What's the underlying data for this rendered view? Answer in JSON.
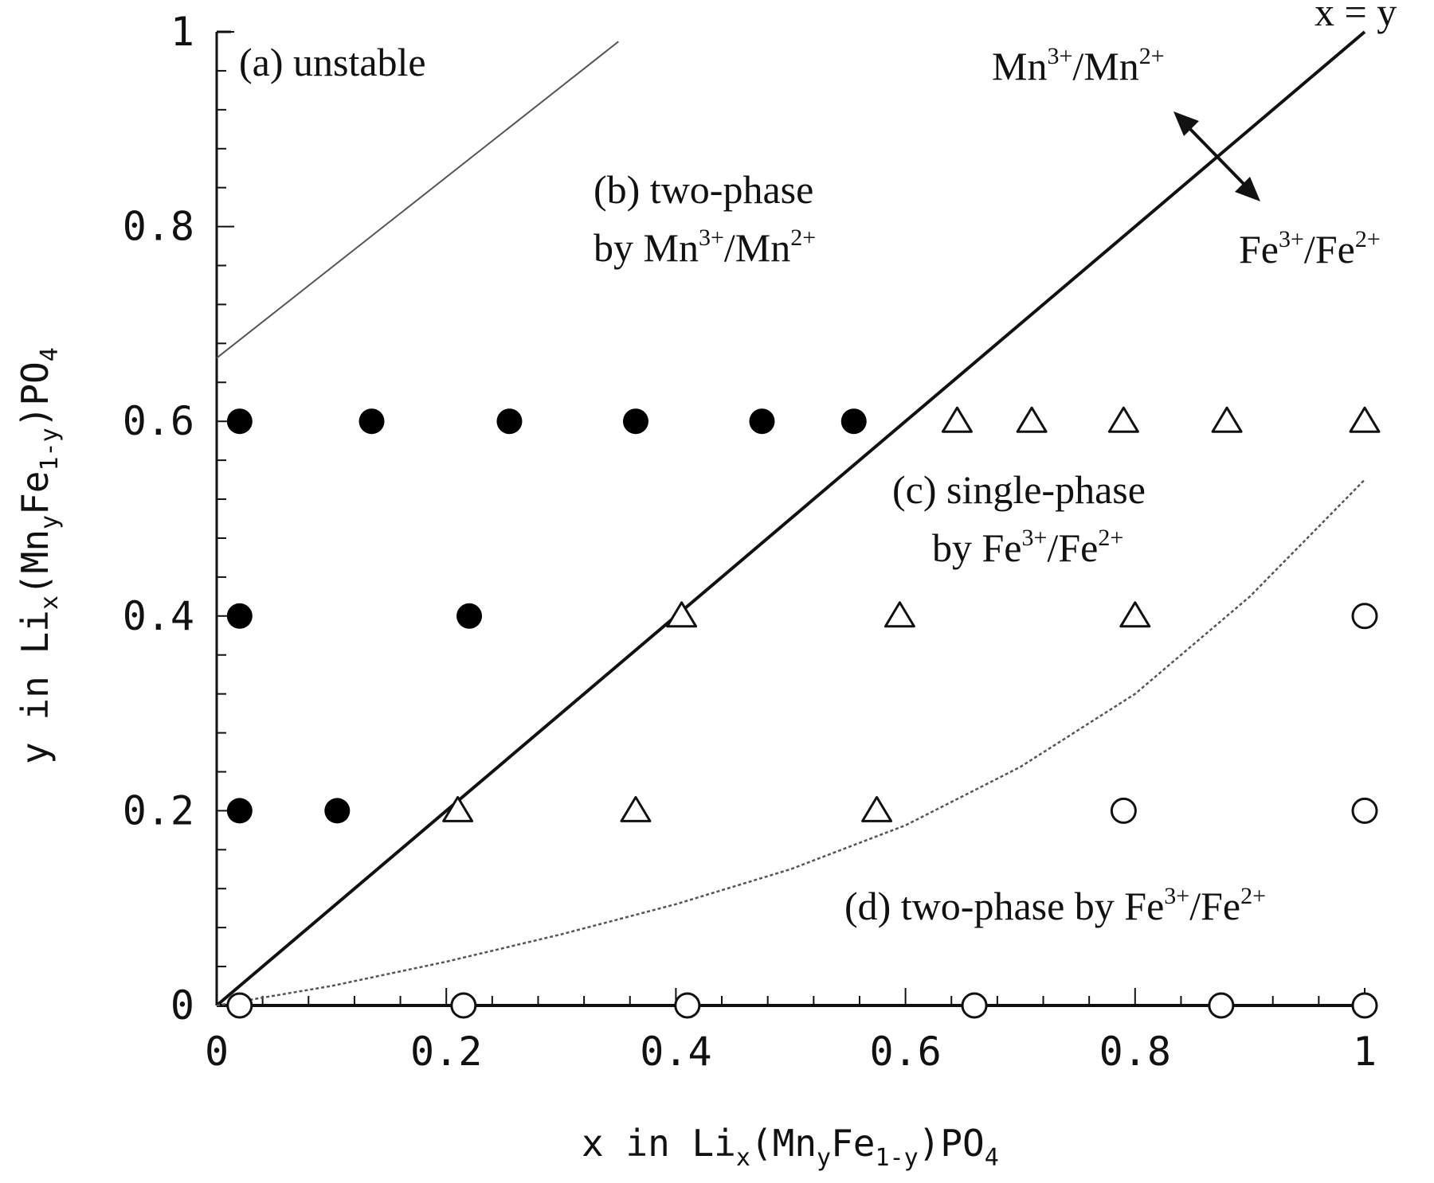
{
  "chart_data": {
    "type": "scatter",
    "xlim": [
      0,
      1
    ],
    "ylim": [
      0,
      1
    ],
    "xticks": [
      {
        "value": 0,
        "label": "0"
      },
      {
        "value": 0.2,
        "label": "0.2"
      },
      {
        "value": 0.4,
        "label": "0.4"
      },
      {
        "value": 0.6,
        "label": "0.6"
      },
      {
        "value": 0.8,
        "label": "0.8"
      },
      {
        "value": 1,
        "label": "1"
      }
    ],
    "yticks": [
      {
        "value": 0,
        "label": "0"
      },
      {
        "value": 0.2,
        "label": "0.2"
      },
      {
        "value": 0.4,
        "label": "0.4"
      },
      {
        "value": 0.6,
        "label": "0.6"
      },
      {
        "value": 0.8,
        "label": "0.8"
      },
      {
        "value": 1,
        "label": "1"
      }
    ],
    "xlabel": "x in Lix(MnyFe1-y)PO4",
    "ylabel": "y in Lix(MnyFe1-y)PO4",
    "grid": false,
    "series": [
      {
        "marker": "filled-circle",
        "points": [
          [
            0.02,
            0.6
          ],
          [
            0.135,
            0.6
          ],
          [
            0.255,
            0.6
          ],
          [
            0.365,
            0.6
          ],
          [
            0.475,
            0.6
          ],
          [
            0.555,
            0.6
          ],
          [
            0.02,
            0.4
          ],
          [
            0.22,
            0.4
          ],
          [
            0.02,
            0.2
          ],
          [
            0.105,
            0.2
          ]
        ]
      },
      {
        "marker": "open-triangle",
        "points": [
          [
            0.645,
            0.6
          ],
          [
            0.71,
            0.6
          ],
          [
            0.79,
            0.6
          ],
          [
            0.88,
            0.6
          ],
          [
            1.0,
            0.6
          ],
          [
            0.405,
            0.4
          ],
          [
            0.595,
            0.4
          ],
          [
            0.8,
            0.4
          ],
          [
            0.21,
            0.2
          ],
          [
            0.365,
            0.2
          ],
          [
            0.575,
            0.2
          ]
        ]
      },
      {
        "marker": "open-circle",
        "points": [
          [
            1.0,
            0.4
          ],
          [
            0.79,
            0.2
          ],
          [
            1.0,
            0.2
          ],
          [
            0.02,
            0
          ],
          [
            0.215,
            0
          ],
          [
            0.41,
            0
          ],
          [
            0.66,
            0
          ],
          [
            0.875,
            0
          ],
          [
            1.0,
            0
          ]
        ]
      }
    ],
    "lines": [
      {
        "style": "solid-thick",
        "points": [
          [
            0,
            0
          ],
          [
            1,
            1
          ]
        ]
      },
      {
        "style": "thin",
        "points": [
          [
            0,
            0.665
          ],
          [
            0.35,
            0.99
          ]
        ]
      },
      {
        "style": "dotted",
        "points": [
          [
            0,
            0
          ],
          [
            0.1,
            0.02
          ],
          [
            0.2,
            0.045
          ],
          [
            0.3,
            0.073
          ],
          [
            0.4,
            0.104
          ],
          [
            0.5,
            0.14
          ],
          [
            0.6,
            0.185
          ],
          [
            0.7,
            0.245
          ],
          [
            0.8,
            0.32
          ],
          [
            0.9,
            0.42
          ],
          [
            1.0,
            0.54
          ]
        ]
      }
    ],
    "annotations": {
      "line_label": "x = y",
      "region_a": "(a) unstable",
      "region_b_1": "(b) two-phase",
      "region_b_2_pre": "by Mn",
      "region_c_1": "(c) single-phase",
      "region_c_2_pre": "by Fe",
      "region_d_pre": "(d) two-phase by Fe",
      "arrow_top_pre": "Mn",
      "arrow_bottom_pre": "Fe",
      "mn_sep": "/Mn",
      "fe_sep": "/Fe",
      "sup3": "3+",
      "sup2": "2+"
    }
  }
}
